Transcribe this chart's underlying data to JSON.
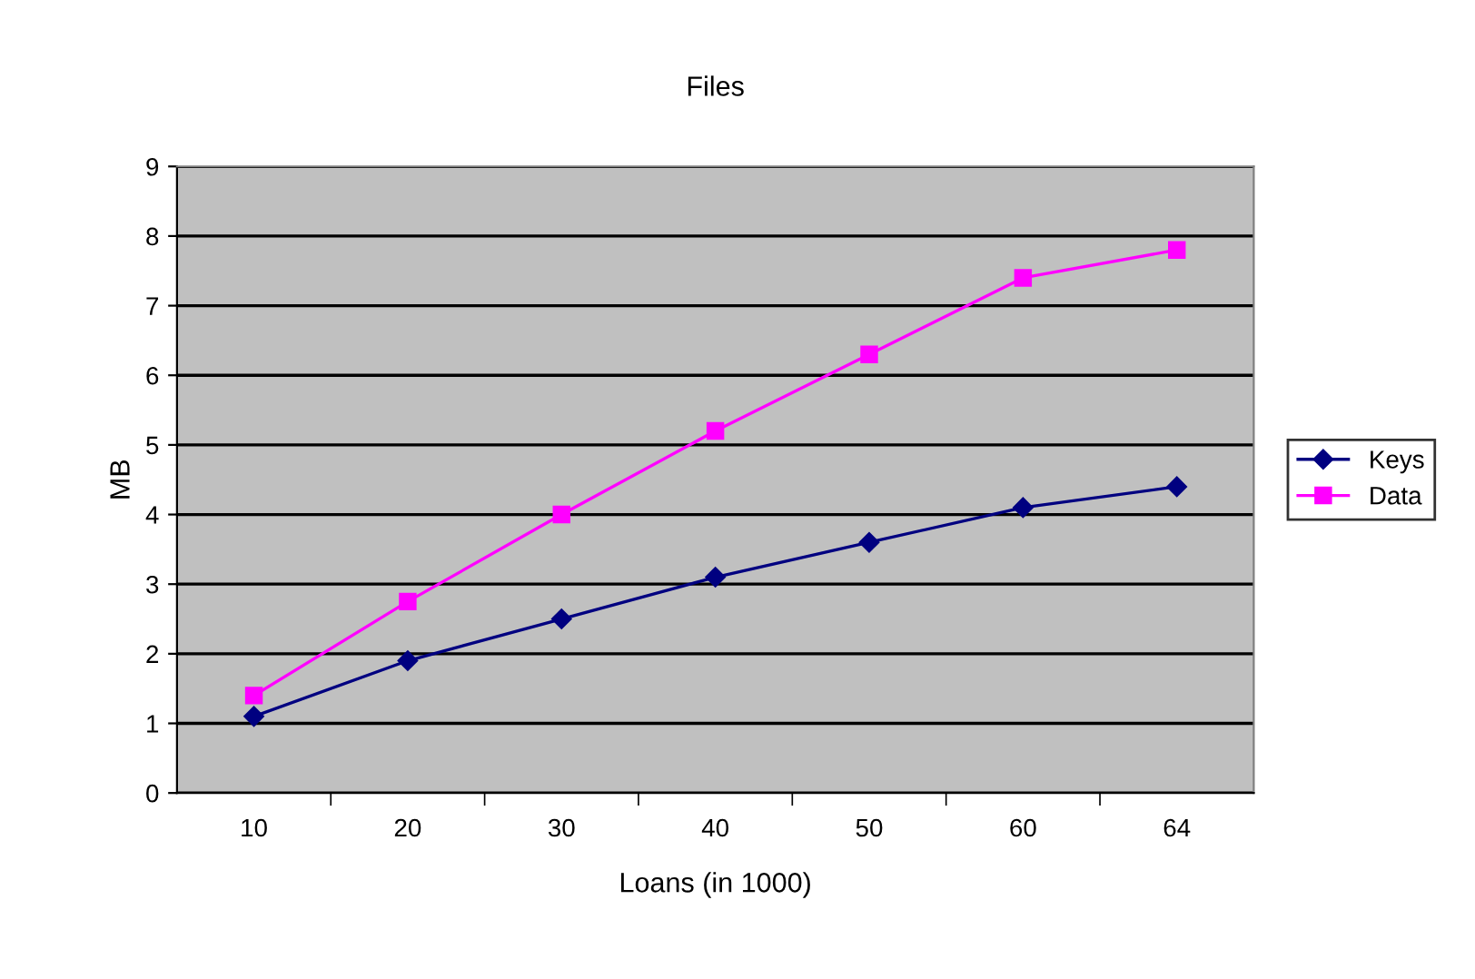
{
  "chart_data": {
    "type": "line",
    "title": "Files",
    "xlabel": "Loans (in 1000)",
    "ylabel": "MB",
    "categories": [
      "10",
      "20",
      "30",
      "40",
      "50",
      "60",
      "64"
    ],
    "series": [
      {
        "name": "Keys",
        "color": "#000080",
        "marker": "diamond",
        "values": [
          1.1,
          1.9,
          2.5,
          3.1,
          3.6,
          4.1,
          4.4
        ]
      },
      {
        "name": "Data",
        "color": "#ff00ff",
        "marker": "square",
        "values": [
          1.4,
          2.75,
          4.0,
          5.2,
          6.3,
          7.4,
          7.8
        ]
      }
    ],
    "ylim": [
      0,
      9
    ],
    "yticks": [
      0,
      1,
      2,
      3,
      4,
      5,
      6,
      7,
      8,
      9
    ],
    "grid": "y",
    "legend": "right"
  }
}
